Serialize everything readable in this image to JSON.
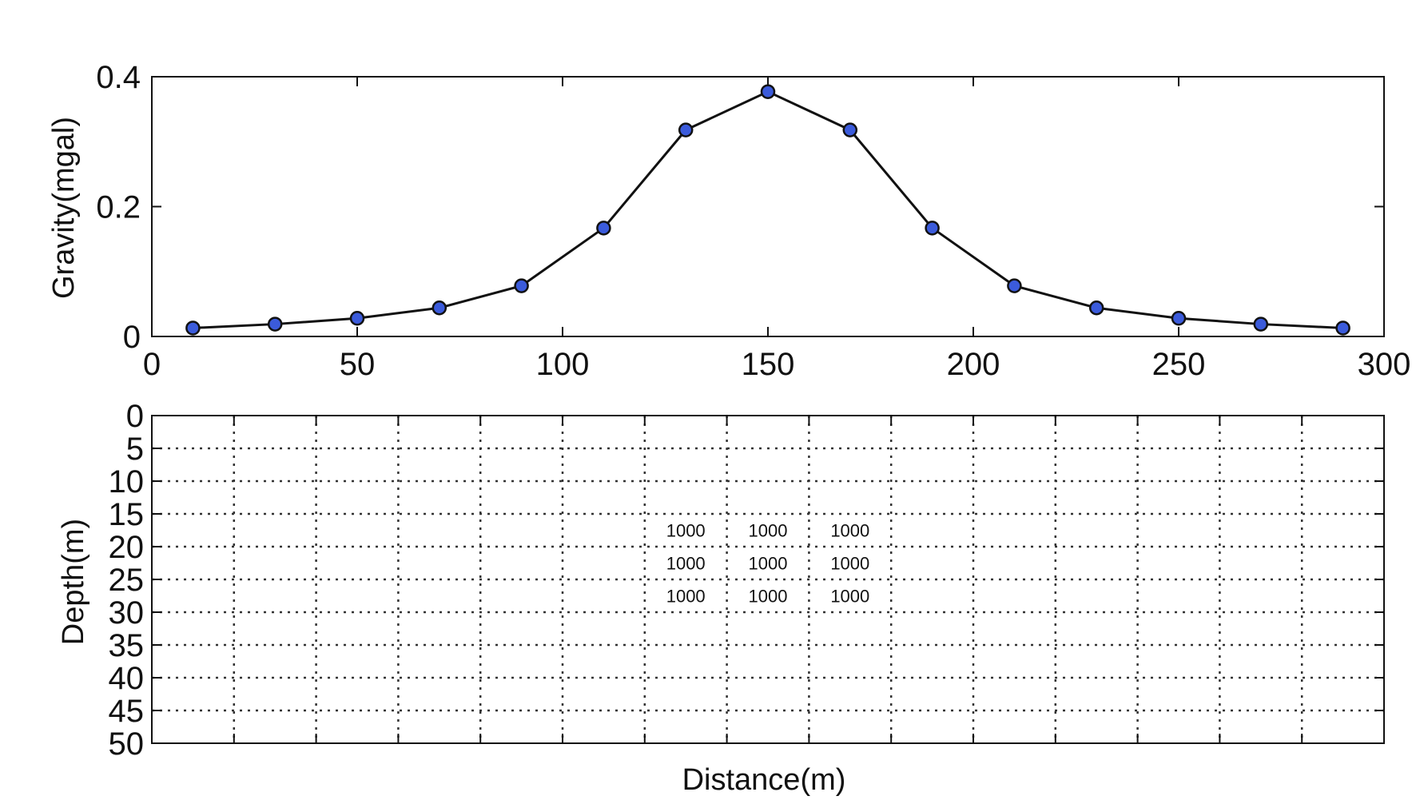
{
  "chart_data": [
    {
      "type": "line",
      "x": [
        10,
        30,
        50,
        70,
        90,
        110,
        130,
        150,
        170,
        190,
        210,
        230,
        250,
        270,
        290
      ],
      "series": [
        {
          "values": [
            0.013,
            0.019,
            0.028,
            0.044,
            0.078,
            0.167,
            0.318,
            0.377,
            0.318,
            0.167,
            0.078,
            0.044,
            0.028,
            0.019,
            0.013
          ],
          "color": "#3b5bdb",
          "line_color": "#111111",
          "marker": "circle"
        }
      ],
      "title": "",
      "xlabel": "",
      "ylabel": "Gravity(mgal)",
      "xlim": [
        0,
        300
      ],
      "ylim": [
        0,
        0.4
      ],
      "xticks": [
        0,
        50,
        100,
        150,
        200,
        250,
        300
      ],
      "xtick_labels": [
        "0",
        "50",
        "100",
        "150",
        "200",
        "250",
        "300"
      ],
      "yticks": [
        0,
        0.2,
        0.4
      ],
      "ytick_labels": [
        "0",
        "0.2",
        "0.4"
      ],
      "grid": false
    },
    {
      "type": "heatmap",
      "title": "",
      "xlabel": "Distance(m)",
      "ylabel": "Depth(m)",
      "xlim": [
        0,
        300
      ],
      "ylim": [
        0,
        50
      ],
      "y_inverted": true,
      "columns": 15,
      "rows": 10,
      "cell_size_x": 20,
      "cell_size_y": 5,
      "yticks": [
        0,
        5,
        10,
        15,
        20,
        25,
        30,
        35,
        40,
        45,
        50
      ],
      "ytick_labels": [
        "0",
        "5",
        "10",
        "15",
        "20",
        "25",
        "30",
        "35",
        "40",
        "45",
        "50"
      ],
      "grid": true,
      "cells": [
        {
          "x_range": [
            120,
            140
          ],
          "y_range": [
            15,
            20
          ],
          "value": 1000,
          "label": "1000"
        },
        {
          "x_range": [
            140,
            160
          ],
          "y_range": [
            15,
            20
          ],
          "value": 1000,
          "label": "1000"
        },
        {
          "x_range": [
            160,
            180
          ],
          "y_range": [
            15,
            20
          ],
          "value": 1000,
          "label": "1000"
        },
        {
          "x_range": [
            120,
            140
          ],
          "y_range": [
            20,
            25
          ],
          "value": 1000,
          "label": "1000"
        },
        {
          "x_range": [
            140,
            160
          ],
          "y_range": [
            20,
            25
          ],
          "value": 1000,
          "label": "1000"
        },
        {
          "x_range": [
            160,
            180
          ],
          "y_range": [
            20,
            25
          ],
          "value": 1000,
          "label": "1000"
        },
        {
          "x_range": [
            120,
            140
          ],
          "y_range": [
            25,
            30
          ],
          "value": 1000,
          "label": "1000"
        },
        {
          "x_range": [
            140,
            160
          ],
          "y_range": [
            25,
            30
          ],
          "value": 1000,
          "label": "1000"
        },
        {
          "x_range": [
            160,
            180
          ],
          "y_range": [
            25,
            30
          ],
          "value": 1000,
          "label": "1000"
        }
      ]
    }
  ]
}
